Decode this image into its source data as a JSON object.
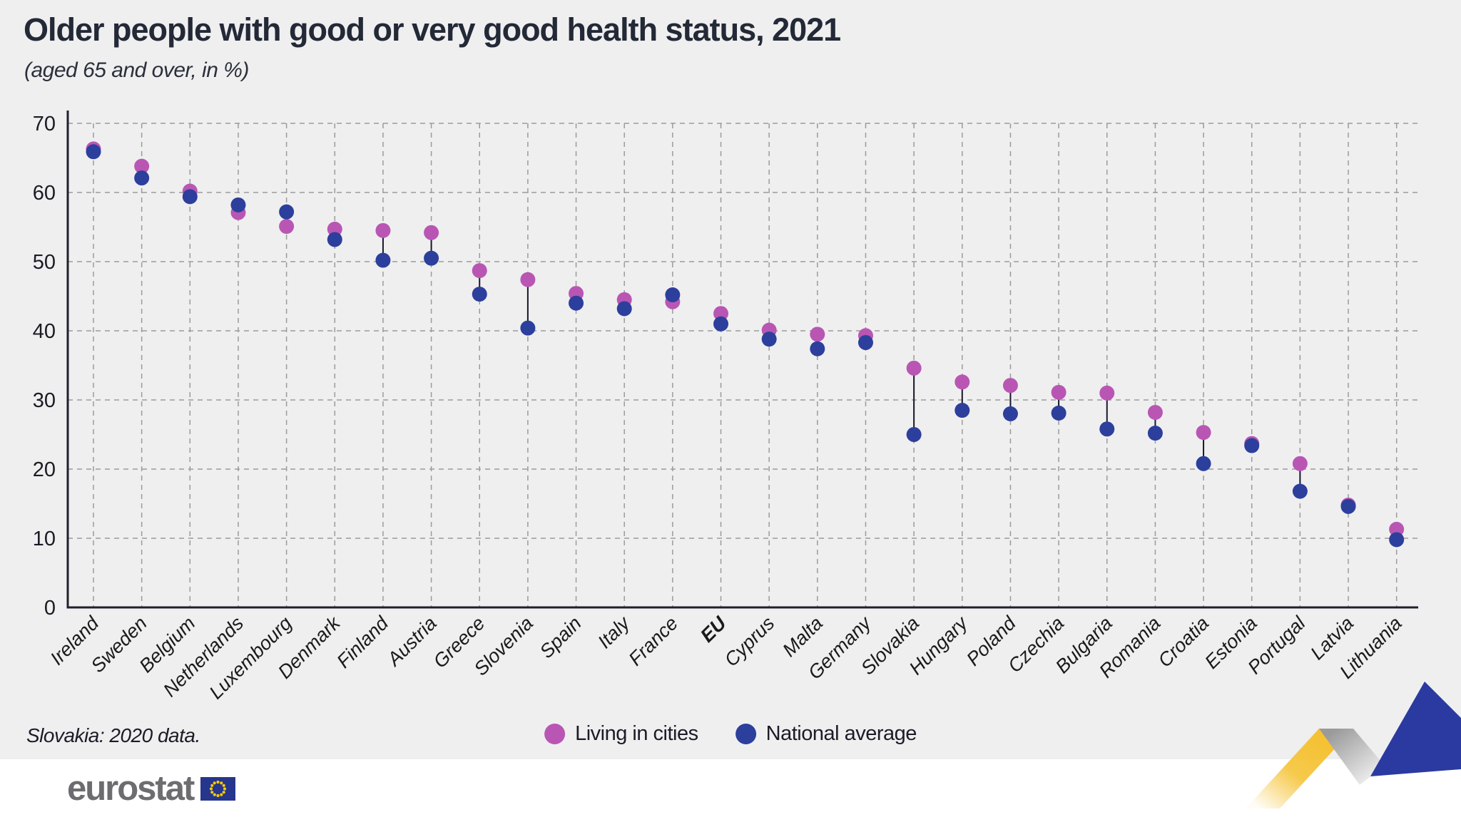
{
  "header": {
    "title": "Older people with good or very good health status, 2021",
    "subtitle": "(aged 65 and over, in %)"
  },
  "footnote": "Slovakia: 2020 data.",
  "legend": {
    "items": [
      {
        "label": "Living in cities",
        "color": "#b956b4",
        "series_key": "living_in_cities"
      },
      {
        "label": "National average",
        "color": "#2c3f9c",
        "series_key": "national_average"
      }
    ]
  },
  "footer": {
    "logo_text": "eurostat",
    "flag_icon": "eu-flag-icon",
    "flag_blue": "#26368c",
    "flag_star_yellow": "#ffcc00",
    "ribbon_colors": {
      "yellow": "#f5c02c",
      "gray": "#9a9a9a",
      "blue": "#2b3aa0"
    }
  },
  "chart_data": {
    "type": "scatter",
    "variant": "dumbbell-dot-plot",
    "title": "Older people with good or very good health status, 2021",
    "subtitle": "(aged 65 and over, in %)",
    "xlabel": "",
    "ylabel": "%",
    "ylim": [
      0,
      70
    ],
    "yticks": [
      0,
      10,
      20,
      30,
      40,
      50,
      60,
      70
    ],
    "grid": "dashed-both-axes",
    "legend_position": "bottom-center",
    "emphasized_category": "EU",
    "categories": [
      "Ireland",
      "Sweden",
      "Belgium",
      "Netherlands",
      "Luxembourg",
      "Denmark",
      "Finland",
      "Austria",
      "Greece",
      "Slovenia",
      "Spain",
      "Italy",
      "France",
      "EU",
      "Cyprus",
      "Malta",
      "Germany",
      "Slovakia",
      "Hungary",
      "Poland",
      "Czechia",
      "Bulgaria",
      "Romania",
      "Croatia",
      "Estonia",
      "Portugal",
      "Latvia",
      "Lithuania"
    ],
    "series": [
      {
        "name": "Living in cities",
        "color": "#b956b4",
        "values": [
          66.3,
          63.8,
          60.2,
          57.1,
          55.1,
          54.7,
          54.5,
          54.2,
          48.7,
          47.4,
          45.4,
          44.5,
          44.2,
          42.5,
          40.1,
          39.5,
          39.3,
          34.6,
          32.6,
          32.1,
          31.1,
          31.0,
          28.2,
          25.3,
          23.7,
          20.8,
          14.8,
          11.3
        ]
      },
      {
        "name": "National average",
        "color": "#2c3f9c",
        "values": [
          65.9,
          62.1,
          59.4,
          58.2,
          57.2,
          53.2,
          50.2,
          50.5,
          45.3,
          40.4,
          44.0,
          43.2,
          45.2,
          41.0,
          38.8,
          37.4,
          38.3,
          25.0,
          28.5,
          28.0,
          28.1,
          25.8,
          25.2,
          20.8,
          23.4,
          16.8,
          14.6,
          9.8
        ]
      }
    ],
    "colors": {
      "living_in_cities": "#b956b4",
      "national_average": "#2c3f9c"
    },
    "styles": {
      "background": "#efeff0",
      "gridline": "#9b9b9b",
      "axis": "#20202c",
      "connector": "#17172b",
      "tick_label": "#1b1b24",
      "category_label": "#1a1a1a"
    }
  }
}
